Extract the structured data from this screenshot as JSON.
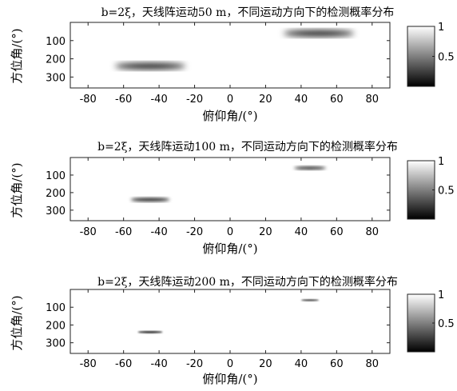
{
  "figure": {
    "colorbar_ticks": [
      "1",
      "0.5"
    ],
    "colorbar_values": [
      1,
      0.5
    ],
    "colormap": "gray",
    "colormap_high": "#ffffff",
    "colormap_low": "#000000"
  },
  "chart_data": [
    {
      "type": "heatmap",
      "title": "b=2ξ，天线阵运动50 m，不同运动方向下的检测概率分布",
      "xlabel": "俯仰角/(°)",
      "ylabel": "方位角/(°)",
      "xlim": [
        -90,
        90
      ],
      "ylim": [
        360,
        0
      ],
      "xticks": [
        -80,
        -60,
        -40,
        -20,
        0,
        20,
        40,
        60,
        80
      ],
      "yticks": [
        100,
        200,
        300
      ],
      "clim": [
        0,
        1
      ],
      "colorbar_ticks": [
        1,
        0.5
      ],
      "regions": [
        {
          "elevation": -45,
          "azimuth": 240,
          "elevation_width": 40,
          "azimuth_width": 30,
          "min_value": 0.0
        },
        {
          "elevation": 50,
          "azimuth": 60,
          "elevation_width": 40,
          "azimuth_width": 30,
          "min_value": 0.0
        }
      ]
    },
    {
      "type": "heatmap",
      "title": "b=2ξ，天线阵运动100 m，不同运动方向下的检测概率分布",
      "xlabel": "俯仰角/(°)",
      "ylabel": "方位角/(°)",
      "xlim": [
        -90,
        90
      ],
      "ylim": [
        360,
        0
      ],
      "xticks": [
        -80,
        -60,
        -40,
        -20,
        0,
        20,
        40,
        60,
        80
      ],
      "yticks": [
        100,
        200,
        300
      ],
      "clim": [
        0,
        1
      ],
      "colorbar_ticks": [
        1,
        0.5
      ],
      "regions": [
        {
          "elevation": -45,
          "azimuth": 240,
          "elevation_width": 22,
          "azimuth_width": 18,
          "min_value": 0.0
        },
        {
          "elevation": 45,
          "azimuth": 60,
          "elevation_width": 18,
          "azimuth_width": 15,
          "min_value": 0.0
        }
      ]
    },
    {
      "type": "heatmap",
      "title": "b=2ξ，天线阵运动200 m，不同运动方向下的检测概率分布",
      "xlabel": "俯仰角/(°)",
      "ylabel": "方位角/(°)",
      "xlim": [
        -90,
        90
      ],
      "ylim": [
        360,
        0
      ],
      "xticks": [
        -80,
        -60,
        -40,
        -20,
        0,
        20,
        40,
        60,
        80
      ],
      "yticks": [
        100,
        200,
        300
      ],
      "clim": [
        0,
        1
      ],
      "colorbar_ticks": [
        1,
        0.5
      ],
      "regions": [
        {
          "elevation": -45,
          "azimuth": 240,
          "elevation_width": 14,
          "azimuth_width": 10,
          "min_value": 0.0
        },
        {
          "elevation": 45,
          "azimuth": 60,
          "elevation_width": 10,
          "azimuth_width": 8,
          "min_value": 0.0
        }
      ]
    }
  ]
}
